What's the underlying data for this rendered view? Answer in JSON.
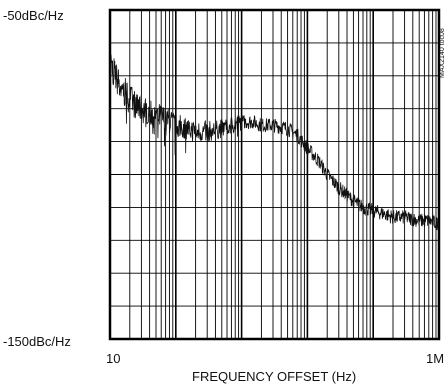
{
  "chart_data": {
    "type": "line",
    "title": "",
    "xlabel": "FREQUENCY OFFSET (Hz)",
    "ylabel": "",
    "x_scale": "log",
    "xlim": [
      10,
      1000000
    ],
    "ylim": [
      -150,
      -50
    ],
    "y_unit": "dBc/Hz",
    "x_tick_labels": [
      {
        "value": 10,
        "label": "10"
      },
      {
        "value": 1000000,
        "label": "1M"
      }
    ],
    "y_tick_labels": [
      {
        "value": -50,
        "label": "-50dBc/Hz"
      },
      {
        "value": -150,
        "label": "-150dBc/Hz"
      }
    ],
    "grid": true,
    "watermark": "MAX2140 toc08",
    "series": [
      {
        "values_note": "",
        "x": [
          10,
          12,
          15,
          20,
          25,
          30,
          40,
          50,
          70,
          100,
          150,
          200,
          300,
          500,
          700,
          1000,
          1500,
          2000,
          3000,
          5000,
          7000,
          10000,
          15000,
          20000,
          30000,
          50000,
          70000,
          100000,
          150000,
          200000,
          300000,
          500000,
          700000,
          1000000
        ],
        "y": [
          -65,
          -70,
          -74,
          -77,
          -79,
          -80,
          -81,
          -82,
          -83,
          -85,
          -86,
          -87,
          -87,
          -86,
          -85,
          -84,
          -84,
          -85,
          -85,
          -86,
          -88,
          -92,
          -96,
          -100,
          -104,
          -108,
          -110,
          -111,
          -112,
          -113,
          -113,
          -114,
          -114,
          -115
        ]
      }
    ]
  }
}
